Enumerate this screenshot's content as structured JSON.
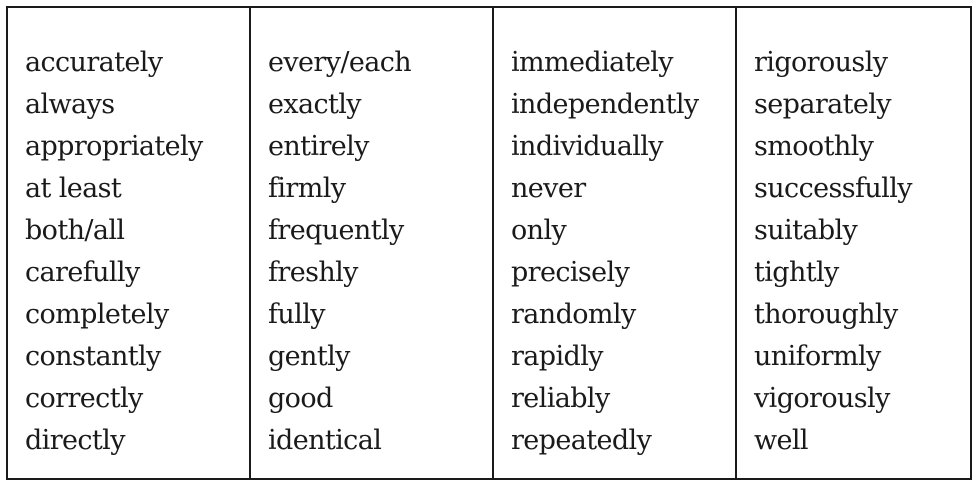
{
  "columns": [
    {
      "words": [
        "accurately",
        "always",
        "appropriately",
        "at least",
        "both/all",
        "carefully",
        "completely",
        "constantly",
        "correctly",
        "directly"
      ]
    },
    {
      "words": [
        "every/each",
        "exactly",
        "entirely",
        "firmly",
        "frequently",
        "freshly",
        "fully",
        "gently",
        "good",
        "identical"
      ]
    },
    {
      "words": [
        "immediately",
        "independently",
        "individually",
        "never",
        "only",
        "precisely",
        "randomly",
        "rapidly",
        "reliably",
        "repeatedly"
      ]
    },
    {
      "words": [
        "rigorously",
        "separately",
        "smoothly",
        "successfully",
        "suitably",
        "tightly",
        "thoroughly",
        "uniformly",
        "vigorously",
        "well"
      ]
    }
  ]
}
